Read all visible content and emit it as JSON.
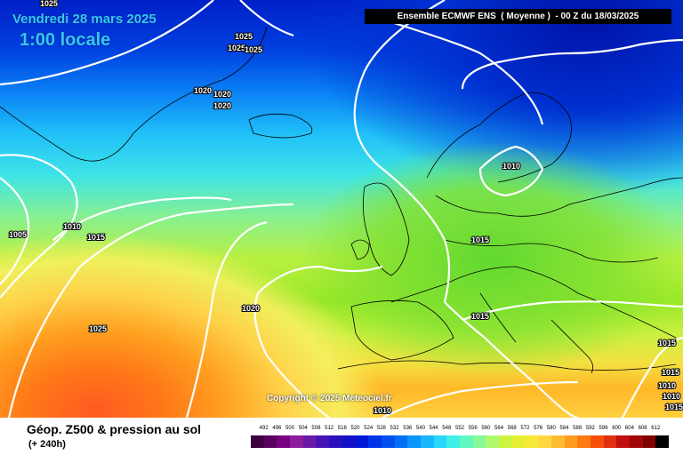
{
  "map": {
    "date": "Vendredi 28 mars 2025",
    "time": "1:00 locale",
    "header": "Ensemble ECMWF ENS  ( Moyenne )  - 00 Z du 18/03/2025",
    "copyright": "Copyright © 2025 Meteociel.fr",
    "isobar_labels": [
      "1025",
      "1025",
      "1025",
      "1025",
      "1020",
      "1020",
      "1020",
      "1010",
      "1005",
      "1010",
      "1015",
      "1015",
      "1015",
      "1020",
      "1025",
      "1015",
      "1010",
      "1010",
      "1010",
      "1015",
      "1015"
    ]
  },
  "footer": {
    "title": "Géop. Z500 & pression au sol",
    "subtitle": "(+ 240h)"
  },
  "scale": {
    "labels": [
      "492",
      "496",
      "500",
      "504",
      "508",
      "512",
      "516",
      "520",
      "524",
      "528",
      "532",
      "536",
      "540",
      "544",
      "548",
      "552",
      "556",
      "560",
      "564",
      "568",
      "572",
      "576",
      "580",
      "584",
      "588",
      "592",
      "596",
      "600",
      "604",
      "608",
      "612"
    ],
    "colors": [
      "#3c0040",
      "#5a0060",
      "#780080",
      "#8e1c9e",
      "#6a1aa8",
      "#4614b4",
      "#2a10bc",
      "#1410c8",
      "#0018d8",
      "#0032e8",
      "#0050f0",
      "#0070f4",
      "#0a96f8",
      "#18b6fa",
      "#28d8fa",
      "#40f0e8",
      "#60f8c0",
      "#88f898",
      "#aef870",
      "#ccf440",
      "#e6f030",
      "#f8e838",
      "#ffd840",
      "#ffbc30",
      "#ff9c20",
      "#ff7a10",
      "#f85008",
      "#e03010",
      "#c01010",
      "#a00808",
      "#800000",
      "#000000"
    ]
  }
}
